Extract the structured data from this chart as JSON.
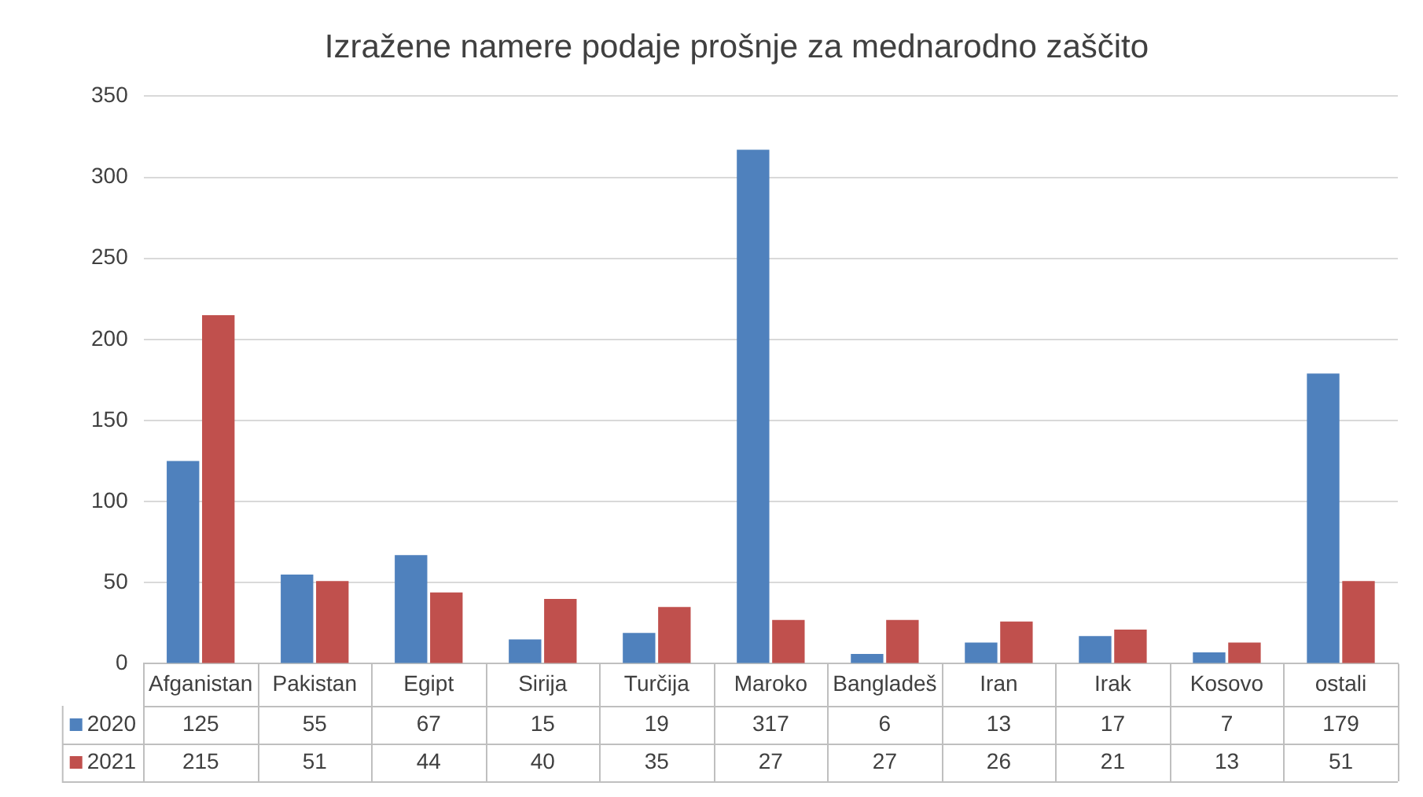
{
  "chart_data": {
    "type": "bar",
    "title": "Izražene namere podaje prošnje za mednarodno zaščito",
    "categories": [
      "Afganistan",
      "Pakistan",
      "Egipt",
      "Sirija",
      "Turčija",
      "Maroko",
      "Bangladeš",
      "Iran",
      "Irak",
      "Kosovo",
      "ostali"
    ],
    "series": [
      {
        "name": "2020",
        "color": "#4f81bd",
        "values": [
          125,
          55,
          67,
          15,
          19,
          317,
          6,
          13,
          17,
          7,
          179
        ]
      },
      {
        "name": "2021",
        "color": "#c0504d",
        "values": [
          215,
          51,
          44,
          40,
          35,
          27,
          27,
          26,
          21,
          13,
          51
        ]
      }
    ],
    "ylim": [
      0,
      350
    ],
    "yticks": [
      0,
      50,
      100,
      150,
      200,
      250,
      300,
      350
    ],
    "grid": "y",
    "legend": "bottom left",
    "data_labels": true
  }
}
